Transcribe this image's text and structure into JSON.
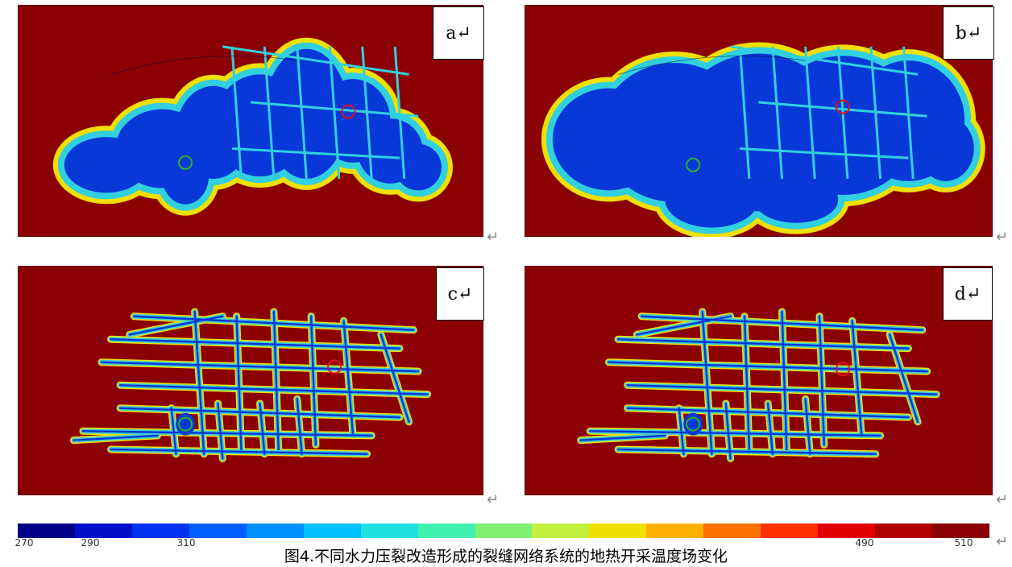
{
  "panels": [
    {
      "label": "a↵"
    },
    {
      "label": "b↵"
    },
    {
      "label": "c↵"
    },
    {
      "label": "d↵"
    }
  ],
  "return_mark": "↵",
  "colorbar": {
    "labels": [
      "270",
      "290",
      "310",
      "490",
      "510"
    ],
    "colors": [
      "#00008b",
      "#0010c8",
      "#0030f0",
      "#0060ff",
      "#0090ff",
      "#00c0ff",
      "#20e0e0",
      "#40f0b0",
      "#80f070",
      "#c0f040",
      "#f0e000",
      "#ffb000",
      "#ff7000",
      "#ff3000",
      "#e00000",
      "#b00000",
      "#8b0000"
    ]
  },
  "colors": {
    "background_hot": "#8b0000",
    "cold": "#0838d8",
    "edge_yellow": "#f0e000",
    "edge_cyan": "#30d0e0",
    "injection_well": "#2ab02a",
    "production_well": "#e01020"
  },
  "caption": "图4.不同水力压裂改造形成的裂缝网络系统的地热开采温度场变化"
}
